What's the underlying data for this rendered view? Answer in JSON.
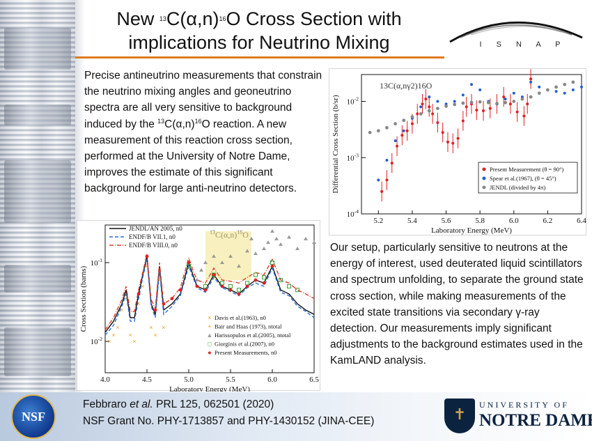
{
  "title": {
    "line1_pre": "New ",
    "line1_sup": "13",
    "line1_mid": "C(α,n)",
    "line1_sup2": "16",
    "line1_post": "O Cross Section with",
    "line2": "implications for Neutrino Mixing"
  },
  "logo_isnap": "I S N A P",
  "intro": {
    "part1": "Precise antineutrino measurements that constrain the neutrino mixing angles and geoneutrino spectra are all very sensitive to background induced by the ",
    "sup1": "13",
    "mid": "C(α,n)",
    "sup2": "16",
    "part2": "O reaction.  A new measurement of this reaction cross section, performed at the University of Notre Dame, improves the estimate of this significant background for large anti-neutrino detectors."
  },
  "setup_text": "Our setup, particularly sensitive to neutrons at the energy of interest, used deuterated liquid scintillators and spectrum unfolding, to separate the ground state cross section, while making measurements of the excited state transitions via secondary γ-ray detection. Our measurements imply significant adjustments to the background estimates used in the KamLAND analysis.",
  "citation": {
    "line1_a": "Febbraro ",
    "line1_b": "et al.",
    "line1_c": " PRL ",
    "line1_d": "125",
    "line1_e": ", 062501 (2020)",
    "line2": "NSF Grant No. PHY-1713857 and PHY-1430152 (JINA-CEE)"
  },
  "logo_nsf": "NSF",
  "logo_nd": {
    "top": "UNIVERSITY OF",
    "bottom": "NOTRE DAME"
  },
  "colors": {
    "accent_rule": "#e07b1e",
    "nd_blue": "#0c2340"
  },
  "chart_data": [
    {
      "type": "scatter",
      "reaction_label": "13C(α,nγ2)16O",
      "xlabel": "Laboratory Energy (MeV)",
      "ylabel": "Differential Cross Section (b/sr)",
      "xlim": [
        5.1,
        6.4
      ],
      "ylim_log": [
        0.0001,
        0.03
      ],
      "log_y": true,
      "x_ticks": [
        "5.2",
        "5.4",
        "5.6",
        "5.8",
        "6.0",
        "6.2",
        "6.4"
      ],
      "y_ticks": [
        "10-4",
        "10-3",
        "10-2"
      ],
      "legend_position": "bottom-right",
      "series": [
        {
          "name": "Present Measurement (θ = 90°)",
          "color": "#e02020",
          "x": [
            5.22,
            5.25,
            5.28,
            5.31,
            5.34,
            5.37,
            5.4,
            5.43,
            5.46,
            5.48,
            5.5,
            5.52,
            5.55,
            5.58,
            5.61,
            5.64,
            5.67,
            5.7,
            5.72,
            5.75,
            5.78,
            5.82,
            5.86,
            5.9,
            5.94,
            5.98,
            6.02,
            6.06,
            6.08,
            6.1
          ],
          "y": [
            0.00025,
            0.0004,
            0.0008,
            0.0016,
            0.0025,
            0.003,
            0.004,
            0.006,
            0.009,
            0.011,
            0.008,
            0.006,
            0.0042,
            0.0028,
            0.0019,
            0.0018,
            0.0022,
            0.0045,
            0.008,
            0.009,
            0.007,
            0.0068,
            0.0075,
            0.009,
            0.012,
            0.009,
            0.0065,
            0.0055,
            0.009,
            0.025
          ]
        },
        {
          "name": "Spear et al.(1967), (θ = 45°)",
          "color": "#2060d0",
          "x": [
            5.2,
            5.25,
            5.3,
            5.35,
            5.4,
            5.45,
            5.5,
            5.55,
            5.6,
            5.65,
            5.7,
            5.75,
            5.8,
            5.85,
            5.9,
            5.95,
            6.0,
            6.05,
            6.1,
            6.15,
            6.2,
            6.25,
            6.3,
            6.35,
            6.4
          ],
          "y": [
            0.0004,
            0.0009,
            0.002,
            0.003,
            0.005,
            0.008,
            0.012,
            0.01,
            0.009,
            0.01,
            0.013,
            0.02,
            0.016,
            0.01,
            0.009,
            0.011,
            0.014,
            0.012,
            0.022,
            0.018,
            0.016,
            0.015,
            0.014,
            0.016,
            0.018
          ]
        },
        {
          "name": "JENDL (divided by 4π)",
          "color": "#888888",
          "x": [
            5.15,
            5.2,
            5.25,
            5.3,
            5.35,
            5.4,
            5.45,
            5.5,
            5.55,
            5.6,
            5.65,
            5.7,
            5.75,
            5.8,
            5.85,
            5.9,
            5.95,
            6.0,
            6.05,
            6.1,
            6.15,
            6.2,
            6.25,
            6.3,
            6.35
          ],
          "y": [
            0.0028,
            0.003,
            0.0034,
            0.004,
            0.0046,
            0.0053,
            0.006,
            0.0068,
            0.0075,
            0.0082,
            0.0088,
            0.0093,
            0.0096,
            0.0098,
            0.0095,
            0.0092,
            0.0095,
            0.01,
            0.011,
            0.012,
            0.014,
            0.016,
            0.018,
            0.02,
            0.022
          ]
        }
      ]
    },
    {
      "type": "line",
      "reaction_label": "13C(α,n)16O",
      "xlabel": "Laboratory Energy (MeV)",
      "ylabel": "Cross Section (barns)",
      "xlim": [
        4.0,
        6.5
      ],
      "ylim_log": [
        0.004,
        0.3
      ],
      "log_y": true,
      "x_ticks": [
        "4.0",
        "4.5",
        "5.0",
        "5.5",
        "6.0",
        "6.5"
      ],
      "y_ticks": [
        "10-2",
        "10-1"
      ],
      "legend_top": [
        "JENDL/AN 2005, n0",
        "ENDF/B VII.1, n0",
        "ENDF/B VIII.0, n0"
      ],
      "legend_bottom": [
        "Davis et al.(1963), n0",
        "Bair and Haas (1973), ntotal",
        "Harissopulos et al.(2005), ntotal",
        "Giorginis et al.(2007), n0",
        "Present Measurements, n0"
      ],
      "series": [
        {
          "name": "JENDL/AN 2005, n0",
          "color": "#111111",
          "style": "solid",
          "x": [
            4.0,
            4.1,
            4.2,
            4.25,
            4.3,
            4.35,
            4.4,
            4.45,
            4.5,
            4.55,
            4.6,
            4.65,
            4.7,
            4.8,
            4.9,
            5.0,
            5.05,
            5.1,
            5.2,
            5.3,
            5.4,
            5.5,
            5.6,
            5.7,
            5.8,
            5.9,
            6.0,
            6.1,
            6.2,
            6.3,
            6.4,
            6.5
          ],
          "y": [
            0.013,
            0.018,
            0.03,
            0.045,
            0.02,
            0.02,
            0.04,
            0.07,
            0.12,
            0.03,
            0.022,
            0.09,
            0.025,
            0.03,
            0.04,
            0.1,
            0.07,
            0.05,
            0.045,
            0.07,
            0.05,
            0.045,
            0.04,
            0.05,
            0.06,
            0.055,
            0.09,
            0.045,
            0.04,
            0.03,
            0.025,
            0.022
          ]
        },
        {
          "name": "ENDF/B VII.1, n0",
          "color": "#2a6fd6",
          "style": "dash",
          "x": [
            4.0,
            4.1,
            4.2,
            4.25,
            4.3,
            4.35,
            4.4,
            4.45,
            4.5,
            4.55,
            4.6,
            4.65,
            4.7,
            4.8,
            4.9,
            5.0,
            5.05,
            5.1,
            5.2,
            5.3,
            5.4,
            5.5,
            5.6,
            5.7,
            5.8,
            5.9,
            6.0,
            6.1,
            6.2,
            6.3,
            6.4,
            6.5
          ],
          "y": [
            0.012,
            0.016,
            0.028,
            0.04,
            0.018,
            0.018,
            0.035,
            0.065,
            0.11,
            0.028,
            0.02,
            0.08,
            0.022,
            0.028,
            0.038,
            0.09,
            0.065,
            0.048,
            0.042,
            0.065,
            0.048,
            0.043,
            0.038,
            0.048,
            0.055,
            0.05,
            0.085,
            0.042,
            0.038,
            0.028,
            0.024,
            0.02
          ]
        },
        {
          "name": "ENDF/B VIII.0, n0",
          "color": "#d8402a",
          "style": "dashdot",
          "x": [
            4.0,
            4.1,
            4.2,
            4.25,
            4.3,
            4.35,
            4.4,
            4.45,
            4.5,
            4.55,
            4.6,
            4.65,
            4.7,
            4.8,
            4.9,
            5.0,
            5.05,
            5.1,
            5.2,
            5.3,
            5.4,
            5.5,
            5.6,
            5.7,
            5.8,
            5.9,
            6.0,
            6.1,
            6.2,
            6.3,
            6.4,
            6.5
          ],
          "y": [
            0.014,
            0.02,
            0.034,
            0.05,
            0.024,
            0.024,
            0.045,
            0.075,
            0.13,
            0.034,
            0.026,
            0.1,
            0.03,
            0.035,
            0.048,
            0.115,
            0.08,
            0.06,
            0.055,
            0.085,
            0.06,
            0.058,
            0.055,
            0.065,
            0.075,
            0.07,
            0.11,
            0.06,
            0.055,
            0.045,
            0.04,
            0.035
          ]
        }
      ],
      "points": [
        {
          "name": "Harissopulos et al.(2005), ntotal",
          "color": "#9a9a9a",
          "x": [
            5.1,
            5.15,
            5.2,
            5.3,
            5.4,
            5.5,
            5.6,
            5.7,
            5.75,
            5.8,
            5.9,
            5.95,
            6.0,
            6.05,
            6.1,
            6.2,
            6.3,
            6.4,
            6.5
          ],
          "y": [
            0.06,
            0.08,
            0.1,
            0.12,
            0.1,
            0.12,
            0.09,
            0.14,
            0.2,
            0.13,
            0.15,
            0.18,
            0.25,
            0.2,
            0.17,
            0.21,
            0.15,
            0.2,
            0.18
          ]
        },
        {
          "name": "Giorginis et al.(2007), n0",
          "color": "#3aa03a",
          "x": [
            5.0,
            5.2,
            5.3,
            5.4,
            5.5,
            5.6,
            5.7,
            5.8,
            5.9,
            6.0,
            6.1,
            6.2,
            6.3
          ],
          "y": [
            0.09,
            0.05,
            0.07,
            0.055,
            0.05,
            0.045,
            0.055,
            0.07,
            0.065,
            0.1,
            0.06,
            0.05,
            0.045
          ]
        },
        {
          "name": "Present Measurements, n0",
          "color": "#e02020",
          "x": [
            4.4,
            4.5,
            4.6,
            4.7,
            4.8,
            4.9,
            5.0,
            5.1,
            5.2,
            5.3,
            5.4,
            5.5,
            5.6,
            5.7,
            5.8,
            5.9,
            6.0
          ],
          "y": [
            0.04,
            0.12,
            0.025,
            0.03,
            0.035,
            0.045,
            0.1,
            0.05,
            0.045,
            0.07,
            0.05,
            0.045,
            0.04,
            0.05,
            0.06,
            0.055,
            0.09
          ]
        },
        {
          "name": "Davis et al.(1963), n0",
          "color": "#e8a020",
          "x": [
            4.05,
            4.1,
            4.15,
            4.2,
            4.25,
            4.3,
            4.35,
            4.4,
            4.45,
            4.5,
            4.55,
            4.6,
            4.65,
            4.7
          ],
          "y": [
            0.01,
            0.012,
            0.015,
            0.025,
            0.035,
            0.012,
            0.01,
            0.03,
            0.05,
            0.09,
            0.015,
            0.012,
            0.06,
            0.015
          ]
        }
      ]
    }
  ]
}
